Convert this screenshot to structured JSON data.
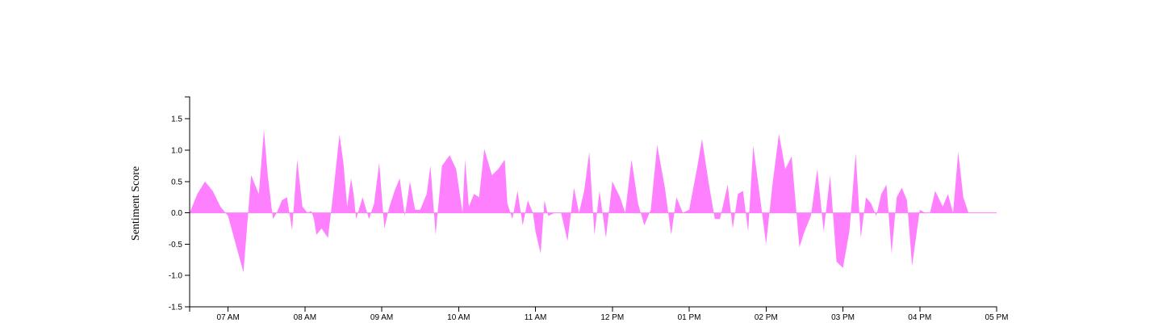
{
  "chart_data": {
    "type": "area",
    "title": "",
    "xlabel": "",
    "ylabel": "Sentiment Score",
    "ylim": [
      -1.5,
      1.85
    ],
    "xlim": [
      "06:30",
      "17:00"
    ],
    "yticks": [
      "-1.5",
      "-1.0",
      "-0.5",
      "0.0",
      "0.5",
      "1.0",
      "1.5"
    ],
    "xticks": [
      "07 AM",
      "08 AM",
      "09 AM",
      "10 AM",
      "11 AM",
      "12 PM",
      "01 PM",
      "02 PM",
      "03 PM",
      "04 PM",
      "05 PM"
    ],
    "grid": false,
    "legend": "none",
    "color": "#ff80ff",
    "series": [
      {
        "x": [
          "06:30",
          "06:36",
          "06:42",
          "06:48",
          "06:54",
          "07:00",
          "07:06",
          "07:12",
          "07:18",
          "07:24",
          "07:28",
          "07:31",
          "07:35",
          "07:38",
          "07:42",
          "07:46",
          "07:50",
          "07:54",
          "07:58",
          "08:02",
          "08:05",
          "08:07",
          "08:09",
          "08:13",
          "08:18",
          "08:22",
          "08:27",
          "08:30",
          "08:33",
          "08:36",
          "08:38",
          "08:40",
          "08:45",
          "08:50",
          "08:54",
          "08:58",
          "09:02",
          "09:06",
          "09:10",
          "09:14",
          "09:18",
          "09:22",
          "09:26",
          "09:30",
          "09:35",
          "09:38",
          "09:42",
          "09:47",
          "09:53",
          "09:58",
          "10:03",
          "10:05",
          "10:08",
          "10:12",
          "10:16",
          "10:20",
          "10:26",
          "10:31",
          "10:36",
          "10:38",
          "10:42",
          "10:46",
          "10:50",
          "10:54",
          "10:58",
          "11:00",
          "11:04",
          "11:07",
          "11:10",
          "11:15",
          "11:20",
          "11:25",
          "11:30",
          "11:34",
          "11:38",
          "11:42",
          "11:46",
          "11:50",
          "11:55",
          "12:00",
          "12:06",
          "12:10",
          "12:15",
          "12:20",
          "12:25",
          "12:30",
          "12:35",
          "12:41",
          "12:46",
          "12:50",
          "12:55",
          "13:00",
          "13:06",
          "13:10",
          "13:15",
          "13:20",
          "13:24",
          "13:30",
          "13:34",
          "13:38",
          "13:42",
          "13:46",
          "13:50",
          "13:55",
          "14:00",
          "14:05",
          "14:10",
          "14:15",
          "14:20",
          "14:26",
          "14:30",
          "14:35",
          "14:40",
          "14:45",
          "14:50",
          "14:55",
          "15:00",
          "15:05",
          "15:10",
          "15:14",
          "15:18",
          "15:22",
          "15:26",
          "15:30",
          "15:34",
          "15:38",
          "15:42",
          "15:46",
          "15:50",
          "15:54",
          "16:00",
          "16:04",
          "16:08",
          "16:12",
          "16:18",
          "16:22",
          "16:26",
          "16:30",
          "16:34",
          "16:38",
          "16:42",
          "16:46",
          "16:50",
          "16:54",
          "16:58",
          "17:00"
        ],
        "values": [
          0.0,
          0.3,
          0.5,
          0.35,
          0.1,
          -0.05,
          -0.5,
          -0.95,
          0.6,
          0.3,
          1.32,
          0.6,
          -0.1,
          0.0,
          0.2,
          0.25,
          -0.28,
          0.85,
          0.1,
          0.0,
          0.03,
          -0.1,
          -0.35,
          -0.25,
          -0.4,
          0.3,
          1.25,
          0.8,
          0.1,
          0.55,
          0.3,
          -0.1,
          0.25,
          -0.1,
          0.15,
          0.8,
          -0.25,
          0.1,
          0.35,
          0.55,
          -0.05,
          0.5,
          0.05,
          0.05,
          0.3,
          0.75,
          -0.35,
          0.75,
          0.92,
          0.7,
          0.0,
          0.85,
          0.1,
          0.3,
          0.25,
          1.02,
          0.6,
          0.7,
          0.85,
          0.15,
          -0.1,
          0.35,
          -0.2,
          0.2,
          0.0,
          -0.3,
          -0.65,
          0.2,
          -0.05,
          0.0,
          0.0,
          -0.45,
          0.4,
          0.0,
          0.35,
          0.97,
          -0.35,
          0.35,
          -0.4,
          0.5,
          0.25,
          0.0,
          0.85,
          0.15,
          -0.2,
          0.05,
          1.08,
          0.4,
          -0.35,
          0.25,
          0.0,
          0.05,
          0.7,
          1.18,
          0.5,
          -0.1,
          -0.1,
          0.45,
          -0.25,
          0.3,
          0.35,
          -0.3,
          1.07,
          0.3,
          -0.5,
          0.45,
          1.26,
          0.7,
          0.9,
          -0.55,
          -0.3,
          -0.05,
          0.7,
          -0.3,
          0.6,
          -0.78,
          -0.88,
          -0.3,
          0.95,
          -0.4,
          0.25,
          0.15,
          -0.05,
          0.3,
          0.45,
          -0.65,
          0.25,
          0.4,
          0.2,
          -0.85,
          0.05,
          0.0,
          0.0,
          0.35,
          0.1,
          0.3,
          0.0,
          0.97,
          0.25,
          0.0,
          0.0,
          0.0,
          0.0,
          0.0,
          0.0,
          0.0
        ]
      }
    ]
  }
}
